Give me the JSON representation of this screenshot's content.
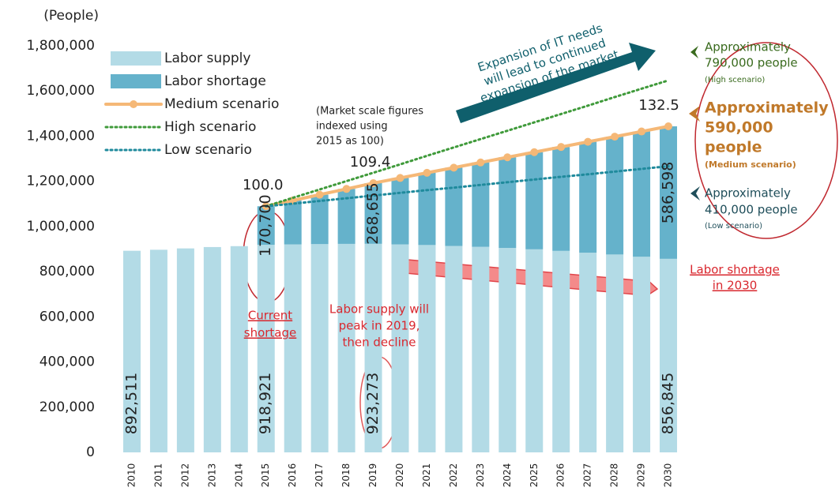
{
  "chart_data": {
    "type": "bar",
    "categories": [
      "2010",
      "2011",
      "2012",
      "2013",
      "2014",
      "2015",
      "2016",
      "2017",
      "2018",
      "2019",
      "2020",
      "2021",
      "2022",
      "2023",
      "2024",
      "2025",
      "2026",
      "2027",
      "2028",
      "2029",
      "2030"
    ],
    "series": [
      {
        "name": "Labor supply",
        "color": "#b3dbe6",
        "kind": "bar",
        "values": [
          892511,
          897000,
          903000,
          909000,
          913000,
          918921,
          921000,
          922000,
          923000,
          923273,
          921000,
          918000,
          914000,
          910000,
          905000,
          899000,
          892000,
          884000,
          876000,
          866000,
          856845
        ],
        "value_labels": [
          "892,511",
          null,
          null,
          null,
          null,
          "918,921",
          null,
          null,
          null,
          "923,273",
          null,
          null,
          null,
          null,
          null,
          null,
          null,
          null,
          null,
          null,
          "856,845"
        ]
      },
      {
        "name": "Labor shortage",
        "color": "#65b2cb",
        "kind": "bar",
        "values": [
          null,
          null,
          null,
          null,
          null,
          170700,
          194200,
          218800,
          243400,
          268655,
          293800,
          319700,
          346500,
          373400,
          401300,
          430100,
          460000,
          490900,
          521700,
          554600,
          586598
        ],
        "value_labels": [
          null,
          null,
          null,
          null,
          null,
          "170,700",
          null,
          null,
          null,
          "268,655",
          null,
          null,
          null,
          null,
          null,
          null,
          null,
          null,
          null,
          null,
          "586,598"
        ]
      },
      {
        "name": "Medium scenario",
        "color": "#f5b877",
        "kind": "line",
        "dash": false,
        "markers": true,
        "values": [
          null,
          null,
          null,
          null,
          null,
          1089621,
          1115200,
          1140800,
          1166400,
          1191928,
          1214800,
          1237700,
          1260500,
          1283400,
          1306300,
          1329100,
          1352000,
          1374900,
          1397700,
          1420600,
          1443443
        ]
      },
      {
        "name": "High scenario",
        "color": "#3f9a3a",
        "kind": "line",
        "dash": true,
        "markers": false,
        "values": [
          null,
          null,
          null,
          null,
          null,
          1089621,
          1127000,
          1164000,
          1201000,
          1238000,
          1275000,
          1313000,
          1350000,
          1387000,
          1424000,
          1461000,
          1498000,
          1535000,
          1573000,
          1610000,
          1646845
        ]
      },
      {
        "name": "Low scenario",
        "color": "#1f8a9c",
        "kind": "line",
        "dash": true,
        "markers": false,
        "values": [
          null,
          null,
          null,
          null,
          null,
          1089621,
          1101000,
          1113000,
          1125000,
          1137000,
          1149000,
          1161000,
          1172000,
          1184000,
          1196000,
          1208000,
          1220000,
          1231000,
          1243000,
          1255000,
          1266845
        ]
      }
    ],
    "index_labels": [
      null,
      null,
      null,
      null,
      null,
      "100.0",
      null,
      null,
      null,
      "109.4",
      null,
      null,
      null,
      null,
      null,
      null,
      null,
      null,
      null,
      null,
      "132.5"
    ],
    "ylim": [
      0,
      1800000
    ],
    "yticks": [
      0,
      {
        "value": 200000,
        "label": "200,000"
      },
      {
        "value": 400000,
        "label": "400,000"
      },
      {
        "value": 600000,
        "label": "600,000"
      },
      {
        "value": 800000,
        "label": "800,000"
      },
      {
        "value": 1000000,
        "label": "1,000,000"
      },
      {
        "value": 1200000,
        "label": "1,200,000"
      },
      {
        "value": 1400000,
        "label": "1,400,000"
      },
      {
        "value": 1600000,
        "label": "1,600,000"
      },
      {
        "value": 1800000,
        "label": "1,800,000"
      }
    ],
    "grid": false,
    "legend": "upper left",
    "annotations": {
      "unit": "(People)",
      "index_note": [
        "(Market scale figures",
        "indexed  using",
        "2015 as 100)"
      ],
      "arrow_note": [
        "Expansion of IT needs",
        "will lead to continued",
        "expansion of the market"
      ],
      "high": [
        "Approximately",
        "790,000 people",
        "(High scenario)"
      ],
      "medium": [
        "Approximately",
        "590,000",
        "people",
        "(Medium scenario)"
      ],
      "low": [
        "Approximately",
        "410,000 people",
        "(Low scenario)"
      ],
      "shortage_2030": [
        "Labor shortage",
        "in 2030"
      ],
      "current": [
        "Current",
        "shortage"
      ],
      "peak": [
        "Labor supply will",
        "peak in 2019,",
        "then decline"
      ]
    }
  }
}
